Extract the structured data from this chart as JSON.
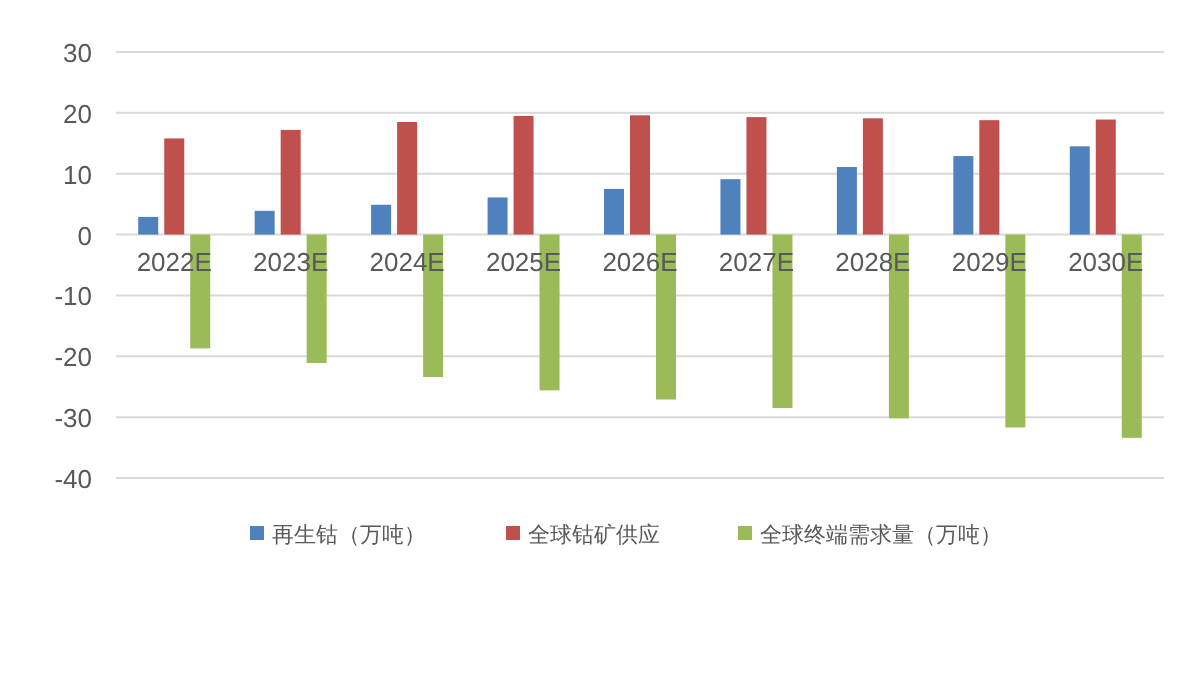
{
  "chart_data": {
    "type": "bar",
    "categories": [
      "2022E",
      "2023E",
      "2024E",
      "2025E",
      "2026E",
      "2027E",
      "2028E",
      "2029E",
      "2030E"
    ],
    "series": [
      {
        "name": "再生钴（万吨）",
        "color": "#4f81bd",
        "values": [
          2.9,
          3.9,
          4.9,
          6.1,
          7.5,
          9.1,
          11.1,
          12.9,
          14.5
        ]
      },
      {
        "name": "全球钴矿供应",
        "color": "#c0504d",
        "values": [
          15.8,
          17.2,
          18.5,
          19.5,
          19.6,
          19.3,
          19.1,
          18.8,
          18.9
        ]
      },
      {
        "name": "全球终端需求量（万吨）",
        "color": "#9bbb59",
        "values": [
          -18.7,
          -21.1,
          -23.4,
          -25.6,
          -27.1,
          -28.5,
          -30.2,
          -31.7,
          -33.4
        ]
      }
    ],
    "ylim": [
      -40,
      30
    ],
    "yticks": [
      -40,
      -30,
      -20,
      -10,
      0,
      10,
      20,
      30
    ],
    "grid": "y",
    "legend": "bottom"
  }
}
